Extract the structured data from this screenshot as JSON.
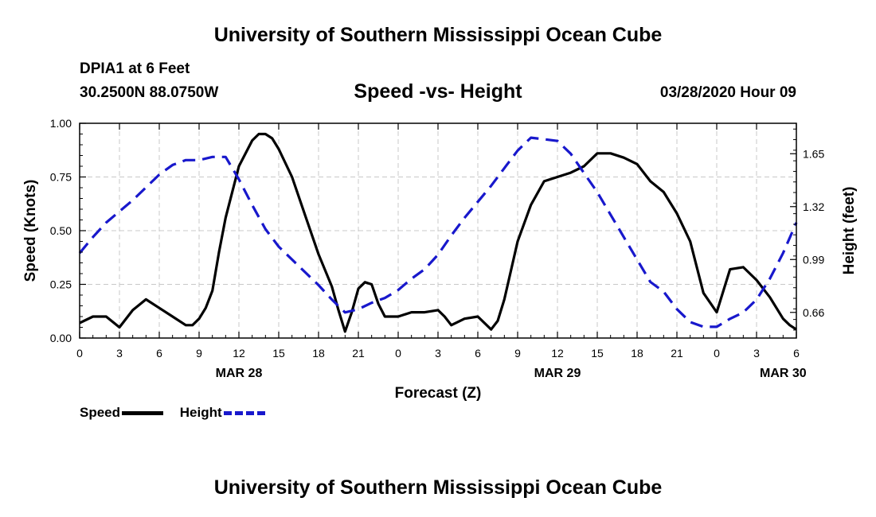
{
  "header": {
    "title": "University of Southern Mississippi Ocean Cube",
    "station": "DPIA1 at 6 Feet",
    "coords": "30.2500N 88.0750W",
    "chart_title": "Speed -vs- Height",
    "date": "03/28/2020 Hour 09"
  },
  "footer": {
    "title": "University of Southern Mississippi Ocean Cube"
  },
  "legend": {
    "speed_label": "Speed",
    "height_label": "Height"
  },
  "colors": {
    "speed": "#000000",
    "height": "#1818cc",
    "grid": "#c8c8c8"
  },
  "chart_data": {
    "type": "line",
    "title": "Speed -vs- Height",
    "xlabel": "Forecast (Z)",
    "ylabel": "Speed (Knots)",
    "y2label": "Height (feet)",
    "xlim": [
      0,
      54
    ],
    "ylim": [
      0,
      1.0
    ],
    "y2lim": [
      0.5,
      1.84
    ],
    "x_ticks": [
      0,
      3,
      6,
      9,
      12,
      15,
      18,
      21,
      24,
      27,
      30,
      33,
      36,
      39,
      42,
      45,
      48,
      51,
      54
    ],
    "x_tick_labels": [
      "0",
      "3",
      "6",
      "9",
      "12",
      "15",
      "18",
      "21",
      "0",
      "3",
      "6",
      "9",
      "12",
      "15",
      "18",
      "21",
      "0",
      "3",
      "6"
    ],
    "date_labels": [
      {
        "x": 12,
        "label": "MAR 28"
      },
      {
        "x": 36,
        "label": "MAR 29"
      },
      {
        "x": 53,
        "label": "MAR 30"
      }
    ],
    "y_ticks": [
      0.0,
      0.25,
      0.5,
      0.75,
      1.0
    ],
    "y_tick_labels": [
      "0.00",
      "0.25",
      "0.50",
      "0.75",
      "1.00"
    ],
    "y2_ticks": [
      0.66,
      0.99,
      1.32,
      1.65
    ],
    "y2_tick_labels": [
      "0.66",
      "0.99",
      "1.32",
      "1.65"
    ],
    "grid": true,
    "legend_position": "bottom-left",
    "series": [
      {
        "name": "Speed",
        "axis": "left",
        "style": "solid",
        "x": [
          0,
          1,
          2,
          3,
          4,
          5,
          6,
          7,
          8,
          8.5,
          9,
          9.5,
          10,
          10.5,
          11,
          12,
          13,
          13.5,
          14,
          14.5,
          15,
          16,
          17,
          18,
          19,
          19.5,
          20,
          20.5,
          21,
          21.5,
          22,
          22.5,
          23,
          24,
          25,
          26,
          27,
          27.5,
          28,
          29,
          30,
          31,
          31.5,
          32,
          33,
          34,
          35,
          36,
          37,
          38,
          39,
          40,
          41,
          42,
          43,
          44,
          45,
          46,
          47,
          48,
          49,
          50,
          51,
          52,
          53,
          53.5,
          54
        ],
        "values": [
          0.07,
          0.1,
          0.1,
          0.05,
          0.13,
          0.18,
          0.14,
          0.1,
          0.06,
          0.06,
          0.09,
          0.14,
          0.22,
          0.4,
          0.56,
          0.8,
          0.92,
          0.95,
          0.95,
          0.93,
          0.88,
          0.75,
          0.57,
          0.39,
          0.24,
          0.13,
          0.03,
          0.12,
          0.23,
          0.26,
          0.25,
          0.16,
          0.1,
          0.1,
          0.12,
          0.12,
          0.13,
          0.1,
          0.06,
          0.09,
          0.1,
          0.04,
          0.08,
          0.18,
          0.45,
          0.62,
          0.73,
          0.75,
          0.77,
          0.8,
          0.86,
          0.86,
          0.84,
          0.81,
          0.73,
          0.68,
          0.58,
          0.45,
          0.21,
          0.12,
          0.32,
          0.33,
          0.27,
          0.19,
          0.09,
          0.06,
          0.04
        ]
      },
      {
        "name": "Height",
        "axis": "right",
        "style": "dashed",
        "x": [
          0,
          1,
          2,
          3,
          4,
          5,
          6,
          7,
          8,
          9,
          10,
          11,
          12,
          13,
          14,
          15,
          16,
          17,
          18,
          19,
          20,
          21,
          22,
          23,
          24,
          25,
          26,
          27,
          28,
          29,
          30,
          31,
          32,
          33,
          34,
          35,
          36,
          37,
          38,
          39,
          40,
          41,
          42,
          43,
          44,
          45,
          46,
          47,
          48,
          49,
          50,
          51,
          52,
          53,
          54
        ],
        "values": [
          1.03,
          1.13,
          1.22,
          1.29,
          1.36,
          1.44,
          1.52,
          1.58,
          1.61,
          1.61,
          1.63,
          1.63,
          1.49,
          1.33,
          1.18,
          1.07,
          0.99,
          0.91,
          0.83,
          0.74,
          0.66,
          0.68,
          0.72,
          0.75,
          0.8,
          0.87,
          0.93,
          1.02,
          1.14,
          1.25,
          1.35,
          1.45,
          1.56,
          1.67,
          1.75,
          1.74,
          1.73,
          1.65,
          1.53,
          1.41,
          1.27,
          1.13,
          0.99,
          0.85,
          0.79,
          0.68,
          0.6,
          0.57,
          0.57,
          0.62,
          0.66,
          0.74,
          0.87,
          1.03,
          1.22
        ]
      }
    ]
  }
}
